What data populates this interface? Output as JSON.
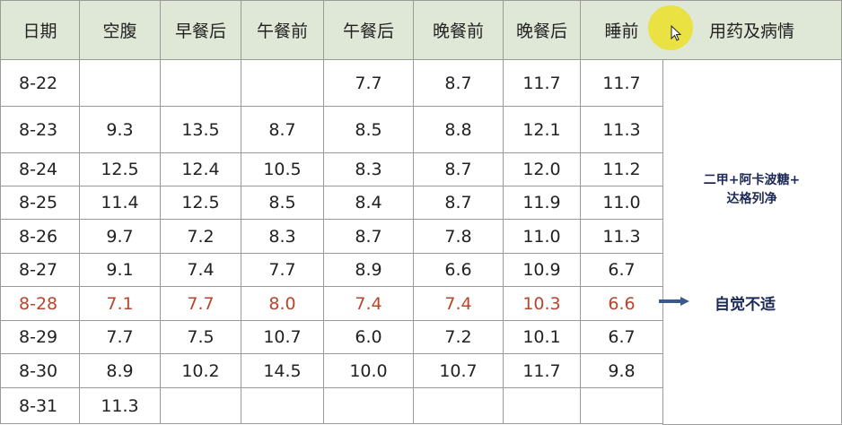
{
  "headers": [
    "日期",
    "空腹",
    "早餐后",
    "午餐前",
    "午餐后",
    "晚餐前",
    "晚餐后",
    "睡前"
  ],
  "side_header": "用药及病情",
  "rows": [
    [
      "8-22",
      "",
      "",
      "",
      "7.7",
      "8.7",
      "11.7",
      "11.7"
    ],
    [
      "8-23",
      "9.3",
      "13.5",
      "8.7",
      "8.5",
      "8.8",
      "12.1",
      "11.3"
    ],
    [
      "8-24",
      "12.5",
      "12.4",
      "10.5",
      "8.3",
      "8.7",
      "12.0",
      "11.2"
    ],
    [
      "8-25",
      "11.4",
      "12.5",
      "8.5",
      "8.4",
      "8.7",
      "11.9",
      "11.0"
    ],
    [
      "8-26",
      "9.7",
      "7.2",
      "8.3",
      "8.7",
      "7.8",
      "11.0",
      "11.3"
    ],
    [
      "8-27",
      "9.1",
      "7.4",
      "7.7",
      "8.9",
      "6.6",
      "10.9",
      "6.7"
    ],
    [
      "8-28",
      "7.1",
      "7.7",
      "8.0",
      "7.4",
      "7.4",
      "10.3",
      "6.6"
    ],
    [
      "8-29",
      "7.7",
      "7.5",
      "10.7",
      "6.0",
      "7.2",
      "10.1",
      "6.7"
    ],
    [
      "8-30",
      "8.9",
      "10.2",
      "14.5",
      "10.0",
      "10.7",
      "11.7",
      "9.8"
    ],
    [
      "8-31",
      "11.3",
      "",
      "",
      "",
      "",
      "",
      ""
    ]
  ],
  "highlight_row": "8-28",
  "medication": {
    "line1": "二甲+阿卡波糖+",
    "line2": "达格列净"
  },
  "note": "自觉不适",
  "colors": {
    "header_bg": "#dfe8d6",
    "highlight_text": "#b8452c",
    "note_text": "#1d2a55"
  },
  "icons": {
    "arrow": "right-arrow-icon",
    "cursor": "mouse-cursor-icon"
  }
}
